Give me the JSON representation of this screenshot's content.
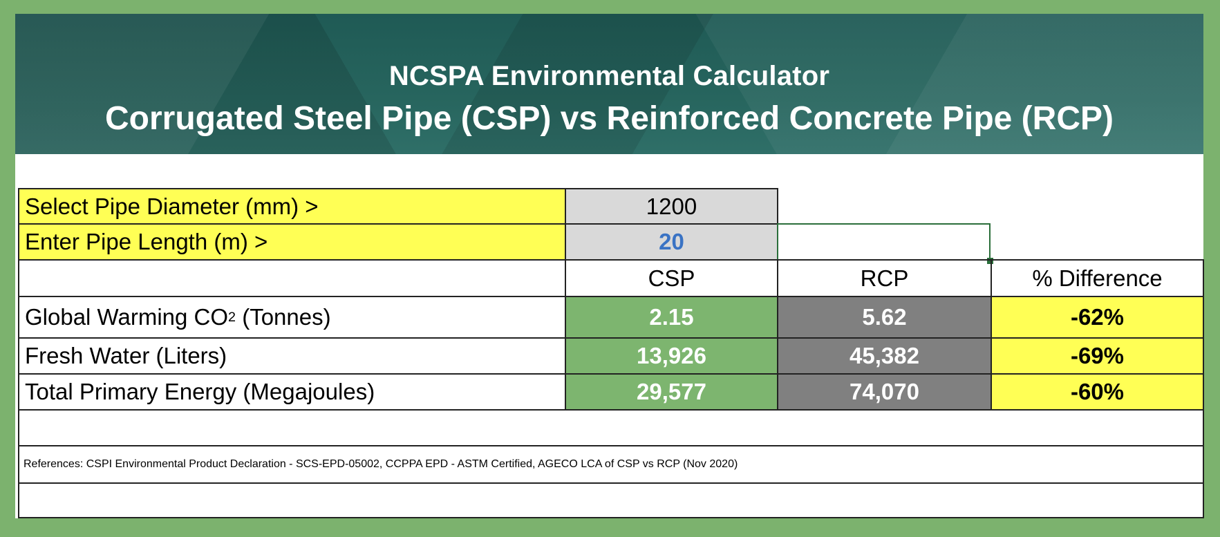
{
  "banner": {
    "title": "NCSPA Environmental Calculator",
    "subtitle": "Corrugated Steel Pipe (CSP) vs Reinforced Concrete Pipe (RCP)"
  },
  "inputs": {
    "diameter_label": "Select Pipe Diameter (mm) >",
    "diameter_value": "1200",
    "length_label": "Enter Pipe Length (m) >",
    "length_value": "20"
  },
  "columns": {
    "csp": "CSP",
    "rcp": "RCP",
    "diff": "% Difference"
  },
  "rows": [
    {
      "label_pre": "Global Warming CO",
      "label_sub": "2",
      "label_post": " (Tonnes)",
      "csp": "2.15",
      "rcp": "5.62",
      "diff": "-62%"
    },
    {
      "label": "Fresh Water (Liters)",
      "csp": "13,926",
      "rcp": "45,382",
      "diff": "-69%"
    },
    {
      "label": "Total Primary Energy (Megajoules)",
      "csp": "29,577",
      "rcp": "74,070",
      "diff": "-60%"
    }
  ],
  "references": "References: CSPI Environmental Product Declaration - SCS-EPD-05002, CCPPA EPD - ASTM Certified, AGECO LCA of CSP vs RCP (Nov 2020)",
  "colors": {
    "page_border": "#7cb26e",
    "label_highlight": "#ffff55",
    "input_cell": "#d9d9d9",
    "csp_cell": "#7db56f",
    "rcp_cell": "#808080",
    "input_value_text": "#3a73c4"
  }
}
